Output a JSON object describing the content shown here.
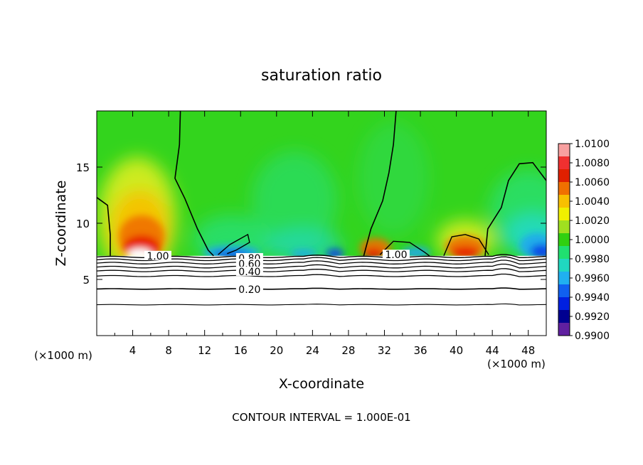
{
  "chart_data": {
    "type": "heatmap",
    "title": "saturation ratio",
    "xlabel": "X-coordinate",
    "ylabel": "Z-coordinate",
    "x_unit_left": "(×1000 m)",
    "x_unit_right": "(×1000 m)",
    "xlim": [
      0,
      50
    ],
    "ylim": [
      0,
      20
    ],
    "x_ticks": [
      4,
      8,
      12,
      16,
      20,
      24,
      28,
      32,
      36,
      40,
      44,
      48
    ],
    "y_ticks": [
      5,
      10,
      15
    ],
    "footer": "CONTOUR INTERVAL = 1.000E-01",
    "colorbar": {
      "labels": [
        "1.0100",
        "1.0080",
        "1.0060",
        "1.0040",
        "1.0020",
        "1.0000",
        "0.9980",
        "0.9960",
        "0.9940",
        "0.9920",
        "0.9900"
      ],
      "colors": [
        "#f8a0a0",
        "#f03030",
        "#e02000",
        "#f07000",
        "#f8c000",
        "#f0f000",
        "#a0e020",
        "#30d010",
        "#20e070",
        "#20d8c0",
        "#20b0f0",
        "#1060f0",
        "#0020e0",
        "#000090",
        "#6020a0"
      ]
    },
    "field_colors": {
      "base": "#33d41d",
      "warm": [
        "#e8f020",
        "#f8c000",
        "#f07000",
        "#e82000",
        "#ffffff"
      ],
      "cool": [
        "#28e078",
        "#20d8d0",
        "#20a8f0",
        "#0a40e8",
        "#0010c0"
      ]
    },
    "cloud_base_km": 7.1,
    "contour_labels": [
      {
        "text": "1.00",
        "x": 6.8,
        "z": 7.1
      },
      {
        "text": "1.00",
        "x": 33.3,
        "z": 7.2
      },
      {
        "text": "0.80",
        "x": 17.0,
        "z": 6.9
      },
      {
        "text": "0.60",
        "x": 17.0,
        "z": 6.4
      },
      {
        "text": "0.40",
        "x": 17.0,
        "z": 5.7
      },
      {
        "text": "0.20",
        "x": 17.0,
        "z": 4.1
      }
    ]
  }
}
